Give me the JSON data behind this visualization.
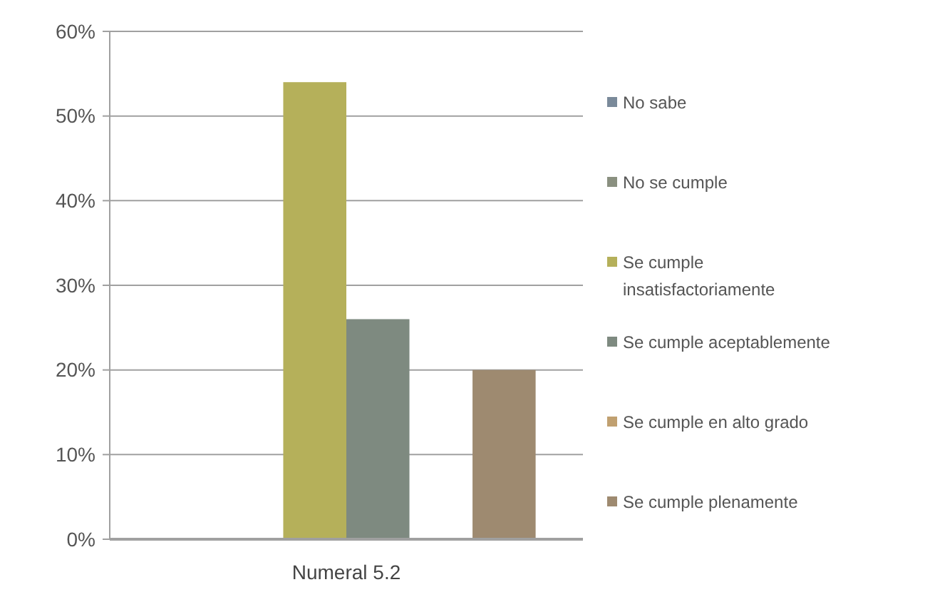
{
  "chart_data": {
    "type": "bar",
    "categories": [
      "Numeral 5.2"
    ],
    "series": [
      {
        "name": "No sabe",
        "color": "#7a8a9a",
        "values": [
          0
        ]
      },
      {
        "name": "No se cumple",
        "color": "#8a9080",
        "values": [
          0
        ]
      },
      {
        "name": "Se cumple insatisfactoriamente",
        "color": "#b5b05a",
        "values": [
          54
        ]
      },
      {
        "name": "Se cumple aceptablemente",
        "color": "#7e8a80",
        "values": [
          26
        ]
      },
      {
        "name": "Se cumple en alto grado",
        "color": "#c0a070",
        "values": [
          0
        ]
      },
      {
        "name": "Se cumple plenamente",
        "color": "#9e8a70",
        "values": [
          20
        ]
      }
    ],
    "ylim": [
      0,
      60
    ],
    "yticks": [
      {
        "value": 0,
        "label": "0%"
      },
      {
        "value": 10,
        "label": "10%"
      },
      {
        "value": 20,
        "label": "20%"
      },
      {
        "value": 30,
        "label": "30%"
      },
      {
        "value": 40,
        "label": "40%"
      },
      {
        "value": 50,
        "label": "50%"
      },
      {
        "value": 60,
        "label": "60%"
      }
    ],
    "grid": "y",
    "legend": "right"
  }
}
